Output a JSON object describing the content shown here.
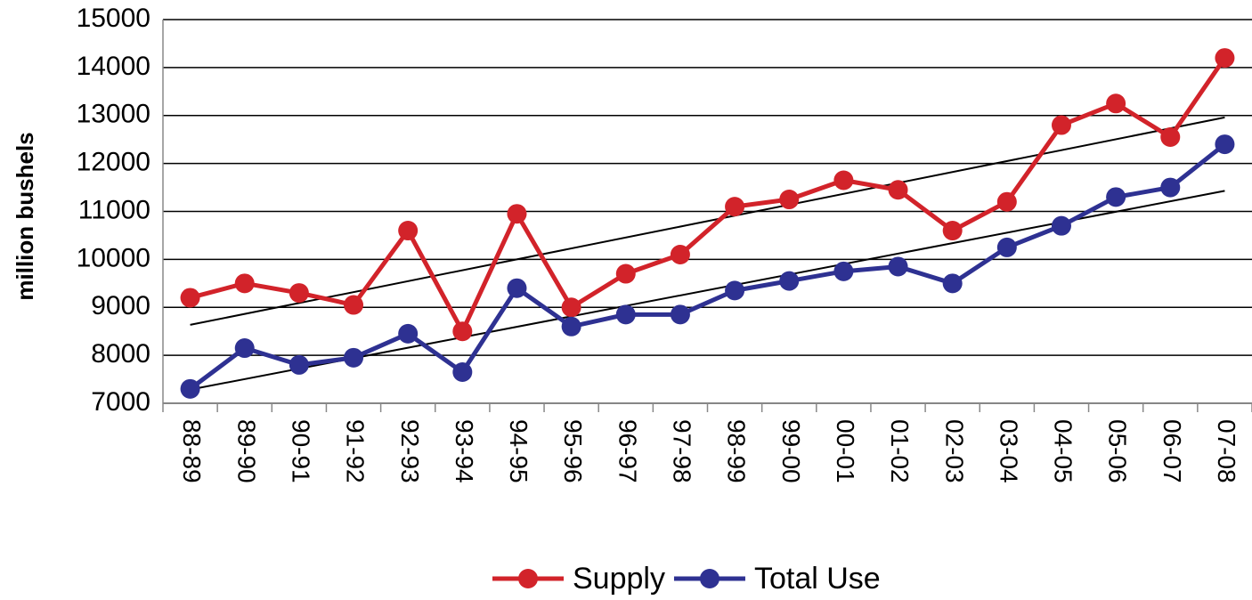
{
  "chart_data": {
    "type": "line",
    "y_label": "million bushels",
    "categories": [
      "88-89",
      "89-90",
      "90-91",
      "91-92",
      "92-93",
      "93-94",
      "94-95",
      "95-96",
      "96-97",
      "97-98",
      "98-99",
      "99-00",
      "00-01",
      "01-02",
      "02-03",
      "03-04",
      "04-05",
      "05-06",
      "06-07",
      "07-08"
    ],
    "series": [
      {
        "name": "Supply",
        "color": "#d2232a",
        "values": [
          9200,
          9500,
          9300,
          9050,
          10600,
          8500,
          10950,
          9000,
          9700,
          10100,
          11100,
          11250,
          11650,
          11450,
          10600,
          11200,
          12800,
          13250,
          12550,
          14200
        ]
      },
      {
        "name": "Total Use",
        "color": "#2e3192",
        "values": [
          7300,
          8150,
          7800,
          7950,
          8450,
          7650,
          9400,
          8600,
          8850,
          8850,
          9350,
          9550,
          9750,
          9850,
          9500,
          10250,
          10700,
          11300,
          11500,
          12400
        ]
      }
    ],
    "ylim": [
      7000,
      15000
    ],
    "yticks": [
      7000,
      8000,
      9000,
      10000,
      11000,
      12000,
      13000,
      14000,
      15000
    ],
    "grid": true,
    "trendline": true,
    "legend": "bottom"
  }
}
